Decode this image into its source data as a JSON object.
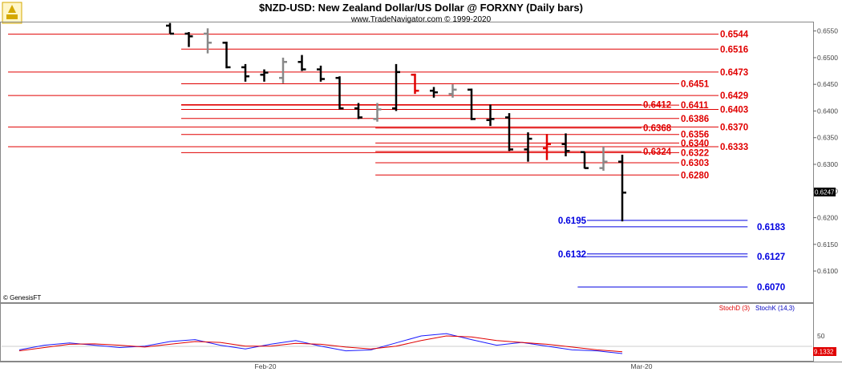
{
  "title": "$NZD-USD:  New Zealand Dollar/US Dollar @ FORXNY  (Daily bars)",
  "subtitle": "www.TradeNavigator.com © 1999-2020",
  "copyright": "© GenesisFT",
  "last_price_label": "0.6247",
  "stoch_value_label": "9.1332",
  "indicator_labels": {
    "stoch_d": "StochD (3)",
    "stoch_k": "StochK (14,3)"
  },
  "colors": {
    "support_resistance": "#e00000",
    "target": "#0000e0",
    "bar_black": "#000000",
    "bar_gray": "#888888",
    "bar_red": "#e00000"
  },
  "chart_data": {
    "type": "ohlc",
    "y_axis": {
      "range": [
        0.6058,
        0.6563
      ],
      "ticks": [
        0.61,
        0.615,
        0.62,
        0.625,
        0.63,
        0.635,
        0.64,
        0.645,
        0.65,
        0.655
      ],
      "tick_labels": [
        "0.6100",
        "0.6150",
        "0.6200",
        "0.6250",
        "0.6300",
        "0.6350",
        "0.6400",
        "0.6450",
        "0.6500",
        "0.6550"
      ]
    },
    "x_axis_labels": [
      "Feb-20",
      "Mar-20"
    ],
    "bars": [
      {
        "o": 0.656,
        "h": 0.6565,
        "l": 0.6545,
        "c": 0.6545,
        "color": "black"
      },
      {
        "o": 0.6545,
        "h": 0.6548,
        "l": 0.652,
        "c": 0.654,
        "color": "black"
      },
      {
        "o": 0.6545,
        "h": 0.6555,
        "l": 0.6508,
        "c": 0.6528,
        "color": "gray"
      },
      {
        "o": 0.6528,
        "h": 0.653,
        "l": 0.648,
        "c": 0.6482,
        "color": "black"
      },
      {
        "o": 0.6482,
        "h": 0.6488,
        "l": 0.6455,
        "c": 0.6465,
        "color": "black"
      },
      {
        "o": 0.6468,
        "h": 0.6478,
        "l": 0.6455,
        "c": 0.6472,
        "color": "black"
      },
      {
        "o": 0.6462,
        "h": 0.65,
        "l": 0.6452,
        "c": 0.6492,
        "color": "gray"
      },
      {
        "o": 0.6492,
        "h": 0.6505,
        "l": 0.6475,
        "c": 0.6478,
        "color": "black"
      },
      {
        "o": 0.6478,
        "h": 0.6485,
        "l": 0.6455,
        "c": 0.646,
        "color": "black"
      },
      {
        "o": 0.6462,
        "h": 0.6465,
        "l": 0.6403,
        "c": 0.6405,
        "color": "black"
      },
      {
        "o": 0.6405,
        "h": 0.6415,
        "l": 0.6385,
        "c": 0.6388,
        "color": "black"
      },
      {
        "o": 0.6385,
        "h": 0.6415,
        "l": 0.638,
        "c": 0.6403,
        "color": "gray"
      },
      {
        "o": 0.6405,
        "h": 0.6488,
        "l": 0.64,
        "c": 0.6473,
        "color": "black"
      },
      {
        "o": 0.6468,
        "h": 0.647,
        "l": 0.6432,
        "c": 0.6438,
        "color": "red"
      },
      {
        "o": 0.6438,
        "h": 0.6445,
        "l": 0.6425,
        "c": 0.6435,
        "color": "black"
      },
      {
        "o": 0.6432,
        "h": 0.645,
        "l": 0.6425,
        "c": 0.644,
        "color": "gray"
      },
      {
        "o": 0.644,
        "h": 0.6442,
        "l": 0.6383,
        "c": 0.6385,
        "color": "black"
      },
      {
        "o": 0.6383,
        "h": 0.6412,
        "l": 0.6372,
        "c": 0.6385,
        "color": "black"
      },
      {
        "o": 0.6388,
        "h": 0.6396,
        "l": 0.6325,
        "c": 0.6328,
        "color": "black"
      },
      {
        "o": 0.6328,
        "h": 0.636,
        "l": 0.6305,
        "c": 0.6348,
        "color": "black"
      },
      {
        "o": 0.633,
        "h": 0.6357,
        "l": 0.6308,
        "c": 0.6338,
        "color": "red"
      },
      {
        "o": 0.6338,
        "h": 0.6358,
        "l": 0.6315,
        "c": 0.6325,
        "color": "black"
      },
      {
        "o": 0.6323,
        "h": 0.6323,
        "l": 0.6292,
        "c": 0.6293,
        "color": "black"
      },
      {
        "o": 0.6293,
        "h": 0.6333,
        "l": 0.6288,
        "c": 0.6305,
        "color": "gray"
      },
      {
        "o": 0.6305,
        "h": 0.6318,
        "l": 0.6193,
        "c": 0.6247,
        "color": "black"
      }
    ],
    "red_levels": [
      {
        "value": 0.6544,
        "label": "0.6544",
        "x0": 0.006,
        "row": 0
      },
      {
        "value": 0.6516,
        "label": "0.6516",
        "x0": 0.22,
        "row": 0
      },
      {
        "value": 0.6473,
        "label": "0.6473",
        "x0": 0.006,
        "row": 0
      },
      {
        "value": 0.6451,
        "label": "0.6451",
        "x0": 0.22,
        "row": 1
      },
      {
        "value": 0.6429,
        "label": "0.6429",
        "x0": 0.006,
        "row": 0
      },
      {
        "value": 0.6412,
        "label": "0.6412",
        "x0": 0.22,
        "row": 2
      },
      {
        "value": 0.6411,
        "label": "0.6411",
        "x0": 0.22,
        "row": 1
      },
      {
        "value": 0.6403,
        "label": "0.6403",
        "x0": 0.22,
        "row": 0
      },
      {
        "value": 0.6386,
        "label": "0.6386",
        "x0": 0.22,
        "row": 1
      },
      {
        "value": 0.637,
        "label": "0.6370",
        "x0": 0.006,
        "row": 0
      },
      {
        "value": 0.6368,
        "label": "0.6368",
        "x0": 0.46,
        "row": 2
      },
      {
        "value": 0.6356,
        "label": "0.6356",
        "x0": 0.22,
        "row": 1
      },
      {
        "value": 0.634,
        "label": "0.6340",
        "x0": 0.46,
        "row": 1
      },
      {
        "value": 0.6333,
        "label": "0.6333",
        "x0": 0.006,
        "row": 0
      },
      {
        "value": 0.6324,
        "label": "0.6324",
        "x0": 0.46,
        "row": 2
      },
      {
        "value": 0.6322,
        "label": "0.6322",
        "x0": 0.22,
        "row": 1
      },
      {
        "value": 0.6303,
        "label": "0.6303",
        "x0": 0.46,
        "row": 1
      },
      {
        "value": 0.628,
        "label": "0.6280",
        "x0": 0.46,
        "row": 1
      }
    ],
    "blue_levels": [
      {
        "value": 0.6195,
        "label": "0.6195",
        "x0": 0.685,
        "x1": 0.92,
        "label_side": "left"
      },
      {
        "value": 0.6183,
        "label": "0.6183",
        "x0": 0.71,
        "x1": 0.92,
        "label_side": "right"
      },
      {
        "value": 0.6132,
        "label": "0.6132",
        "x0": 0.71,
        "x1": 0.92,
        "label_side": "left"
      },
      {
        "value": 0.6127,
        "label": "0.6127",
        "x0": 0.71,
        "x1": 0.92,
        "label_side": "right"
      },
      {
        "value": 0.607,
        "label": "0.6070",
        "x0": 0.71,
        "x1": 0.92,
        "label_side": "right"
      }
    ],
    "stochastic": {
      "y_range": [
        0,
        100
      ],
      "ticks": [
        50
      ],
      "stoch_k": [
        20,
        30,
        35,
        30,
        25,
        28,
        38,
        42,
        30,
        22,
        32,
        40,
        28,
        18,
        20,
        35,
        50,
        55,
        42,
        30,
        36,
        28,
        20,
        18,
        12
      ],
      "stoch_d": [
        18,
        25,
        32,
        33,
        30,
        26,
        32,
        38,
        36,
        28,
        28,
        34,
        32,
        26,
        22,
        28,
        40,
        50,
        48,
        40,
        36,
        32,
        26,
        20,
        16
      ]
    }
  }
}
